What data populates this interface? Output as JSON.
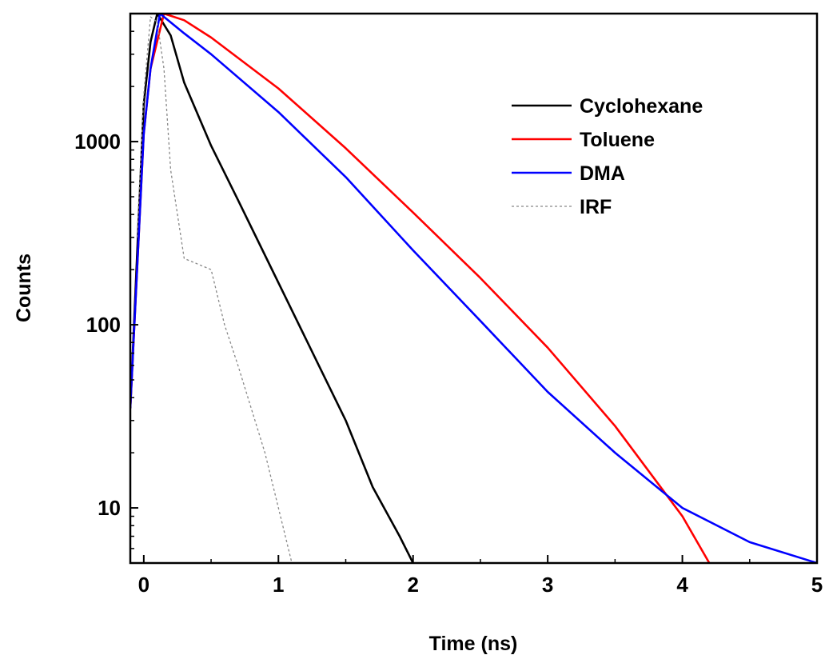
{
  "chart_data": {
    "type": "line",
    "title": "",
    "xlabel": "Time (ns)",
    "ylabel": "Counts",
    "xlim": [
      -0.1,
      5
    ],
    "ylim": [
      5,
      5000
    ],
    "yscale": "log",
    "x_ticks": [
      0,
      1,
      2,
      3,
      4,
      5
    ],
    "x_tick_labels": [
      "0",
      "1",
      "2",
      "3",
      "4",
      "5"
    ],
    "y_ticks": [
      10,
      100,
      1000
    ],
    "y_tick_labels": [
      "10",
      "100",
      "1000"
    ],
    "grid": false,
    "legend_position": "top-right",
    "series": [
      {
        "name": "Cyclohexane",
        "color": "#000000",
        "style": "solid",
        "x": [
          -0.1,
          0.0,
          0.05,
          0.1,
          0.2,
          0.3,
          0.5,
          0.7,
          0.9,
          1.1,
          1.3,
          1.5,
          1.7,
          1.9,
          2.0
        ],
        "y": [
          35,
          1600,
          3500,
          5000,
          3800,
          2100,
          950,
          480,
          240,
          120,
          60,
          30,
          13,
          7,
          5
        ]
      },
      {
        "name": "Toluene",
        "color": "#ff0000",
        "style": "solid",
        "x": [
          -0.1,
          0.0,
          0.05,
          0.15,
          0.3,
          0.5,
          1.0,
          1.5,
          2.0,
          2.5,
          3.0,
          3.5,
          4.0,
          4.2
        ],
        "y": [
          35,
          1100,
          2500,
          5000,
          4600,
          3700,
          1950,
          920,
          410,
          180,
          75,
          28,
          9,
          5
        ]
      },
      {
        "name": "DMA",
        "color": "#0000ff",
        "style": "solid",
        "x": [
          -0.1,
          0.0,
          0.05,
          0.12,
          0.3,
          0.5,
          1.0,
          1.5,
          2.0,
          2.5,
          3.0,
          3.5,
          4.0,
          4.5,
          5.0
        ],
        "y": [
          35,
          1100,
          2500,
          5000,
          3900,
          3000,
          1450,
          640,
          255,
          105,
          43,
          20,
          10,
          6.5,
          5
        ]
      },
      {
        "name": "IRF",
        "color": "#888888",
        "style": "dashed",
        "x": [
          -0.05,
          0.0,
          0.05,
          0.1,
          0.15,
          0.2,
          0.3,
          0.5,
          0.6,
          0.7,
          0.9,
          1.0,
          1.1
        ],
        "y": [
          300,
          1800,
          4800,
          4500,
          2500,
          700,
          230,
          200,
          100,
          60,
          20,
          10,
          5
        ]
      }
    ]
  }
}
